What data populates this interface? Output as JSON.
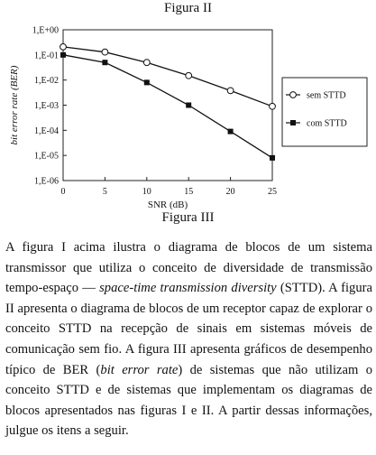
{
  "captions": {
    "top": "Figura II",
    "bottom": "Figura III"
  },
  "chart_data": {
    "type": "line",
    "title": "",
    "xlabel": "SNR (dB)",
    "ylabel": "bit error rate (BER)",
    "x": [
      0,
      5,
      10,
      15,
      20,
      25
    ],
    "xlim": [
      0,
      25
    ],
    "ylim": [
      1e-06,
      1
    ],
    "yscale": "log",
    "x_ticks": [
      "0",
      "5",
      "10",
      "15",
      "20",
      "25"
    ],
    "y_ticks": [
      {
        "v": 1,
        "label": "1,E+00"
      },
      {
        "v": 0.1,
        "label": "1,E-01"
      },
      {
        "v": 0.01,
        "label": "1,E-02"
      },
      {
        "v": 0.001,
        "label": "1,E-03"
      },
      {
        "v": 0.0001,
        "label": "1,E-04"
      },
      {
        "v": 1e-05,
        "label": "1,E-05"
      },
      {
        "v": 1e-06,
        "label": "1,E-06"
      }
    ],
    "grid": false,
    "legend_position": "right",
    "series": [
      {
        "name": "sem STTD",
        "marker": "circle-open",
        "values": [
          0.21,
          0.13,
          0.05,
          0.015,
          0.0038,
          0.0009
        ]
      },
      {
        "name": "com STTD",
        "marker": "square-filled",
        "values": [
          0.1,
          0.05,
          0.008,
          0.001,
          9e-05,
          8e-06
        ]
      }
    ]
  },
  "paragraph": {
    "p1": "A figura I acima ilustra o diagrama de blocos de um sistema transmissor que utiliza o conceito de diversidade de transmissão tempo-espaço — ",
    "i1": "space-time transmission diversity",
    "p2": " (STTD). A figura II apresenta o diagrama de blocos de um receptor capaz de explorar o conceito STTD na recepção de sinais em sistemas móveis de comunicação sem fio. A figura III apresenta gráficos de desempenho típico de BER (",
    "i2": "bit error rate",
    "p3": ") de sistemas que não utilizam o conceito STTD e de sistemas que implementam os diagramas de blocos apresentados nas figuras I e II. A partir dessas informações, julgue os itens a seguir."
  }
}
